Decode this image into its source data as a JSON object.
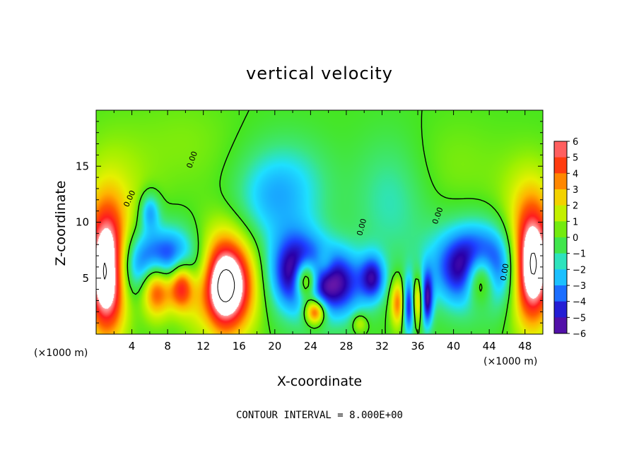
{
  "chart_data": {
    "type": "heatmap",
    "title": "vertical velocity",
    "xlabel": "X-coordinate",
    "ylabel": "Z-coordinate",
    "x_unit": "(×1000 m)",
    "y_unit": "(×1000 m)",
    "xlim": [
      0,
      50
    ],
    "ylim": [
      0,
      20
    ],
    "x_ticks": [
      "4",
      "8",
      "12",
      "16",
      "20",
      "24",
      "28",
      "32",
      "36",
      "40",
      "44",
      "48"
    ],
    "x_tick_values": [
      4,
      8,
      12,
      16,
      20,
      24,
      28,
      32,
      36,
      40,
      44,
      48
    ],
    "y_ticks": [
      "5",
      "10",
      "15"
    ],
    "y_tick_values": [
      5,
      10,
      15
    ],
    "colorbar": {
      "range": [
        -6,
        6
      ],
      "tick_labels": [
        "6",
        "5",
        "4",
        "3",
        "2",
        "1",
        "0",
        "−1",
        "−2",
        "−3",
        "−4",
        "−5",
        "−6"
      ],
      "tick_values": [
        6,
        5,
        4,
        3,
        2,
        1,
        0,
        -1,
        -2,
        -3,
        -4,
        -5,
        -6
      ],
      "colors": [
        "#7a1fa8",
        "#2a00a8",
        "#1e3cff",
        "#18a0ff",
        "#1ee0ff",
        "#3ce67a",
        "#46e61e",
        "#a0f000",
        "#e6f000",
        "#ffb400",
        "#ff5a00",
        "#ff1e1e",
        "#ffa0a0"
      ]
    },
    "contour_label": "0.00",
    "note": "CONTOUR INTERVAL = 8.000E+00",
    "cells": [
      {
        "x": 1.2,
        "z": 5.5,
        "sx": 1.6,
        "sz": 3.8,
        "amp": 9
      },
      {
        "x": 6.8,
        "z": 4.3,
        "sx": 1.3,
        "sz": 1.8,
        "amp": 8
      },
      {
        "x": 9.5,
        "z": 4.5,
        "sx": 1.0,
        "sz": 1.6,
        "amp": 7
      },
      {
        "x": 14.2,
        "z": 4.5,
        "sx": 2.3,
        "sz": 3.0,
        "amp": 10
      },
      {
        "x": 23.5,
        "z": 4.8,
        "sx": 0.9,
        "sz": 1.3,
        "amp": 7
      },
      {
        "x": 24.5,
        "z": 2.0,
        "sx": 0.8,
        "sz": 0.8,
        "amp": 6
      },
      {
        "x": 33.8,
        "z": 2.8,
        "sx": 0.6,
        "sz": 1.5,
        "amp": 4
      },
      {
        "x": 36.0,
        "z": 3.0,
        "sx": 0.5,
        "sz": 1.5,
        "amp": 4
      },
      {
        "x": 43.0,
        "z": 5.0,
        "sx": 1.2,
        "sz": 1.7,
        "amp": 6
      },
      {
        "x": 48.8,
        "z": 6.0,
        "sx": 1.6,
        "sz": 3.5,
        "amp": 9
      },
      {
        "x": 7.5,
        "z": 6.0,
        "sx": 3.5,
        "sz": 2.2,
        "amp": -7
      },
      {
        "x": 6.0,
        "z": 11.0,
        "sx": 0.8,
        "sz": 1.2,
        "amp": -3
      },
      {
        "x": 22.5,
        "z": 5.5,
        "sx": 2.2,
        "sz": 2.5,
        "amp": -6
      },
      {
        "x": 27.0,
        "z": 4.5,
        "sx": 2.2,
        "sz": 2.2,
        "amp": -5
      },
      {
        "x": 31.0,
        "z": 5.0,
        "sx": 1.0,
        "sz": 1.5,
        "amp": -4
      },
      {
        "x": 35.0,
        "z": 2.5,
        "sx": 0.5,
        "sz": 1.8,
        "amp": -5
      },
      {
        "x": 37.0,
        "z": 3.0,
        "sx": 0.5,
        "sz": 1.8,
        "amp": -5
      },
      {
        "x": 42.5,
        "z": 6.0,
        "sx": 3.2,
        "sz": 2.5,
        "amp": -7
      },
      {
        "x": 18.5,
        "z": 12.0,
        "sx": 2.5,
        "sz": 3.0,
        "amp": -1.5
      },
      {
        "x": 22.0,
        "z": 13.0,
        "sx": 3.0,
        "sz": 3.0,
        "amp": -2.0
      },
      {
        "x": 33.0,
        "z": 12.0,
        "sx": 3.0,
        "sz": 4.0,
        "amp": -1.5
      },
      {
        "x": 12.5,
        "z": 3.0,
        "sx": 1.0,
        "sz": 3.0,
        "amp": -1.2
      },
      {
        "x": 2.0,
        "z": 12.0,
        "sx": 3.0,
        "sz": 4.0,
        "amp": 1.5
      },
      {
        "x": 48.5,
        "z": 12.0,
        "sx": 2.5,
        "sz": 3.0,
        "amp": 1.5
      },
      {
        "x": 25.5,
        "z": 6.2,
        "sx": 0.8,
        "sz": 1.0,
        "amp": 2.0
      },
      {
        "x": 29.5,
        "z": 1.0,
        "sx": 0.6,
        "sz": 0.6,
        "amp": 2.0
      },
      {
        "x": 40.0,
        "z": 15.0,
        "sx": 4.0,
        "sz": 3.0,
        "amp": 0.6
      },
      {
        "x": 10.0,
        "z": 17.0,
        "sx": 4.0,
        "sz": 3.0,
        "amp": 0.6
      }
    ]
  }
}
